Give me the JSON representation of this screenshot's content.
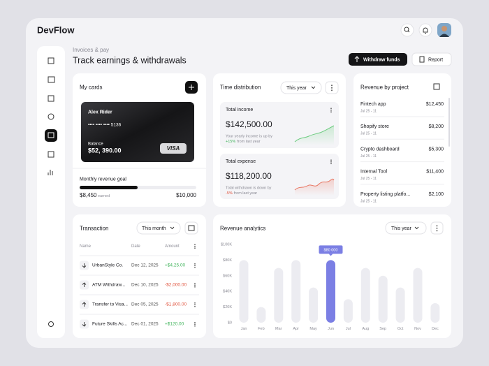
{
  "app": {
    "logo": "DevFlow"
  },
  "header": {
    "breadcrumb": "Invoices & pay",
    "title": "Track earnings & withdrawals",
    "withdraw_button": "Withdraw funds",
    "report_button": "Report"
  },
  "my_cards": {
    "title": "My cards",
    "card": {
      "holder": "Alex Rider",
      "number": "•••• •••• •••• 5136",
      "balance_label": "Balance",
      "balance": "$52, 390.00",
      "brand": "VISA"
    },
    "goal": {
      "label": "Monthly revenue goal",
      "current": "$8,450",
      "current_note": "earned",
      "target": "$10,000"
    }
  },
  "time_distribution": {
    "title": "Time distribution",
    "filter": "This year",
    "items": [
      {
        "label": "Total income",
        "amount": "$142,500.00",
        "note": "Your yearly income is up by",
        "change": "+15%",
        "note_after": "from last year"
      },
      {
        "label": "Total expense",
        "amount": "$118,200.00",
        "note": "Total withdrawn is down by",
        "change": "-5%",
        "note_after": "from last year"
      }
    ]
  },
  "revenue_by_project": {
    "title": "Revenue by project",
    "projects": [
      {
        "name": "Fintech app",
        "date": "Jul 25 - 11",
        "amount": "$12,450"
      },
      {
        "name": "Shopify store",
        "date": "Jul 25 - 11",
        "amount": "$8,200"
      },
      {
        "name": "Crypto dashboard",
        "date": "Jul 25 - 11",
        "amount": "$5,300"
      },
      {
        "name": "Internal Tool",
        "date": "Jul 25 - 11",
        "amount": "$11,400"
      },
      {
        "name": "Property listing platfo...",
        "date": "Jul 25 - 11",
        "amount": "$2,100"
      }
    ]
  },
  "transaction": {
    "title": "Transaction",
    "filter": "This month",
    "columns": [
      "Name",
      "Date",
      "Amount"
    ],
    "rows": [
      [
        "UrbanStyle Co.",
        "Dec 12, 2025",
        "+$4,25.00"
      ],
      [
        "ATM Withdraw...",
        "Dec 10, 2025",
        "-$2,000.00"
      ],
      [
        "Transfer to Visa...",
        "Dec 05, 2025",
        "-$1,800.00"
      ],
      [
        "Future Skills Ac...",
        "Dec 01, 2025",
        "+$120.00"
      ]
    ]
  },
  "revenue_analytics": {
    "title": "Revenue analytics",
    "filter": "This year",
    "chart": {
      "type": "bar",
      "categories": [
        "Jan",
        "Feb",
        "Mar",
        "Apr",
        "May",
        "Jun",
        "Jul",
        "Aug",
        "Sep",
        "Oct",
        "Nov",
        "Dec"
      ],
      "values": [
        80,
        20,
        70,
        80,
        45,
        80,
        30,
        70,
        60,
        45,
        70,
        25
      ],
      "value_labels": [
        null,
        null,
        null,
        null,
        null,
        "$80 000",
        null,
        null,
        null,
        null,
        null,
        null
      ],
      "color": "#ececf1",
      "highlight_color": "#7b7fe4",
      "ylim": [
        0,
        100
      ],
      "yticks": [
        {
          "value": 0,
          "label": "$0"
        },
        {
          "value": 20,
          "label": "$20K"
        },
        {
          "value": 40,
          "label": "$40K"
        },
        {
          "value": 60,
          "label": "$60K"
        },
        {
          "value": 80,
          "label": "$80K"
        },
        {
          "value": 100,
          "label": "$100K"
        }
      ]
    }
  }
}
